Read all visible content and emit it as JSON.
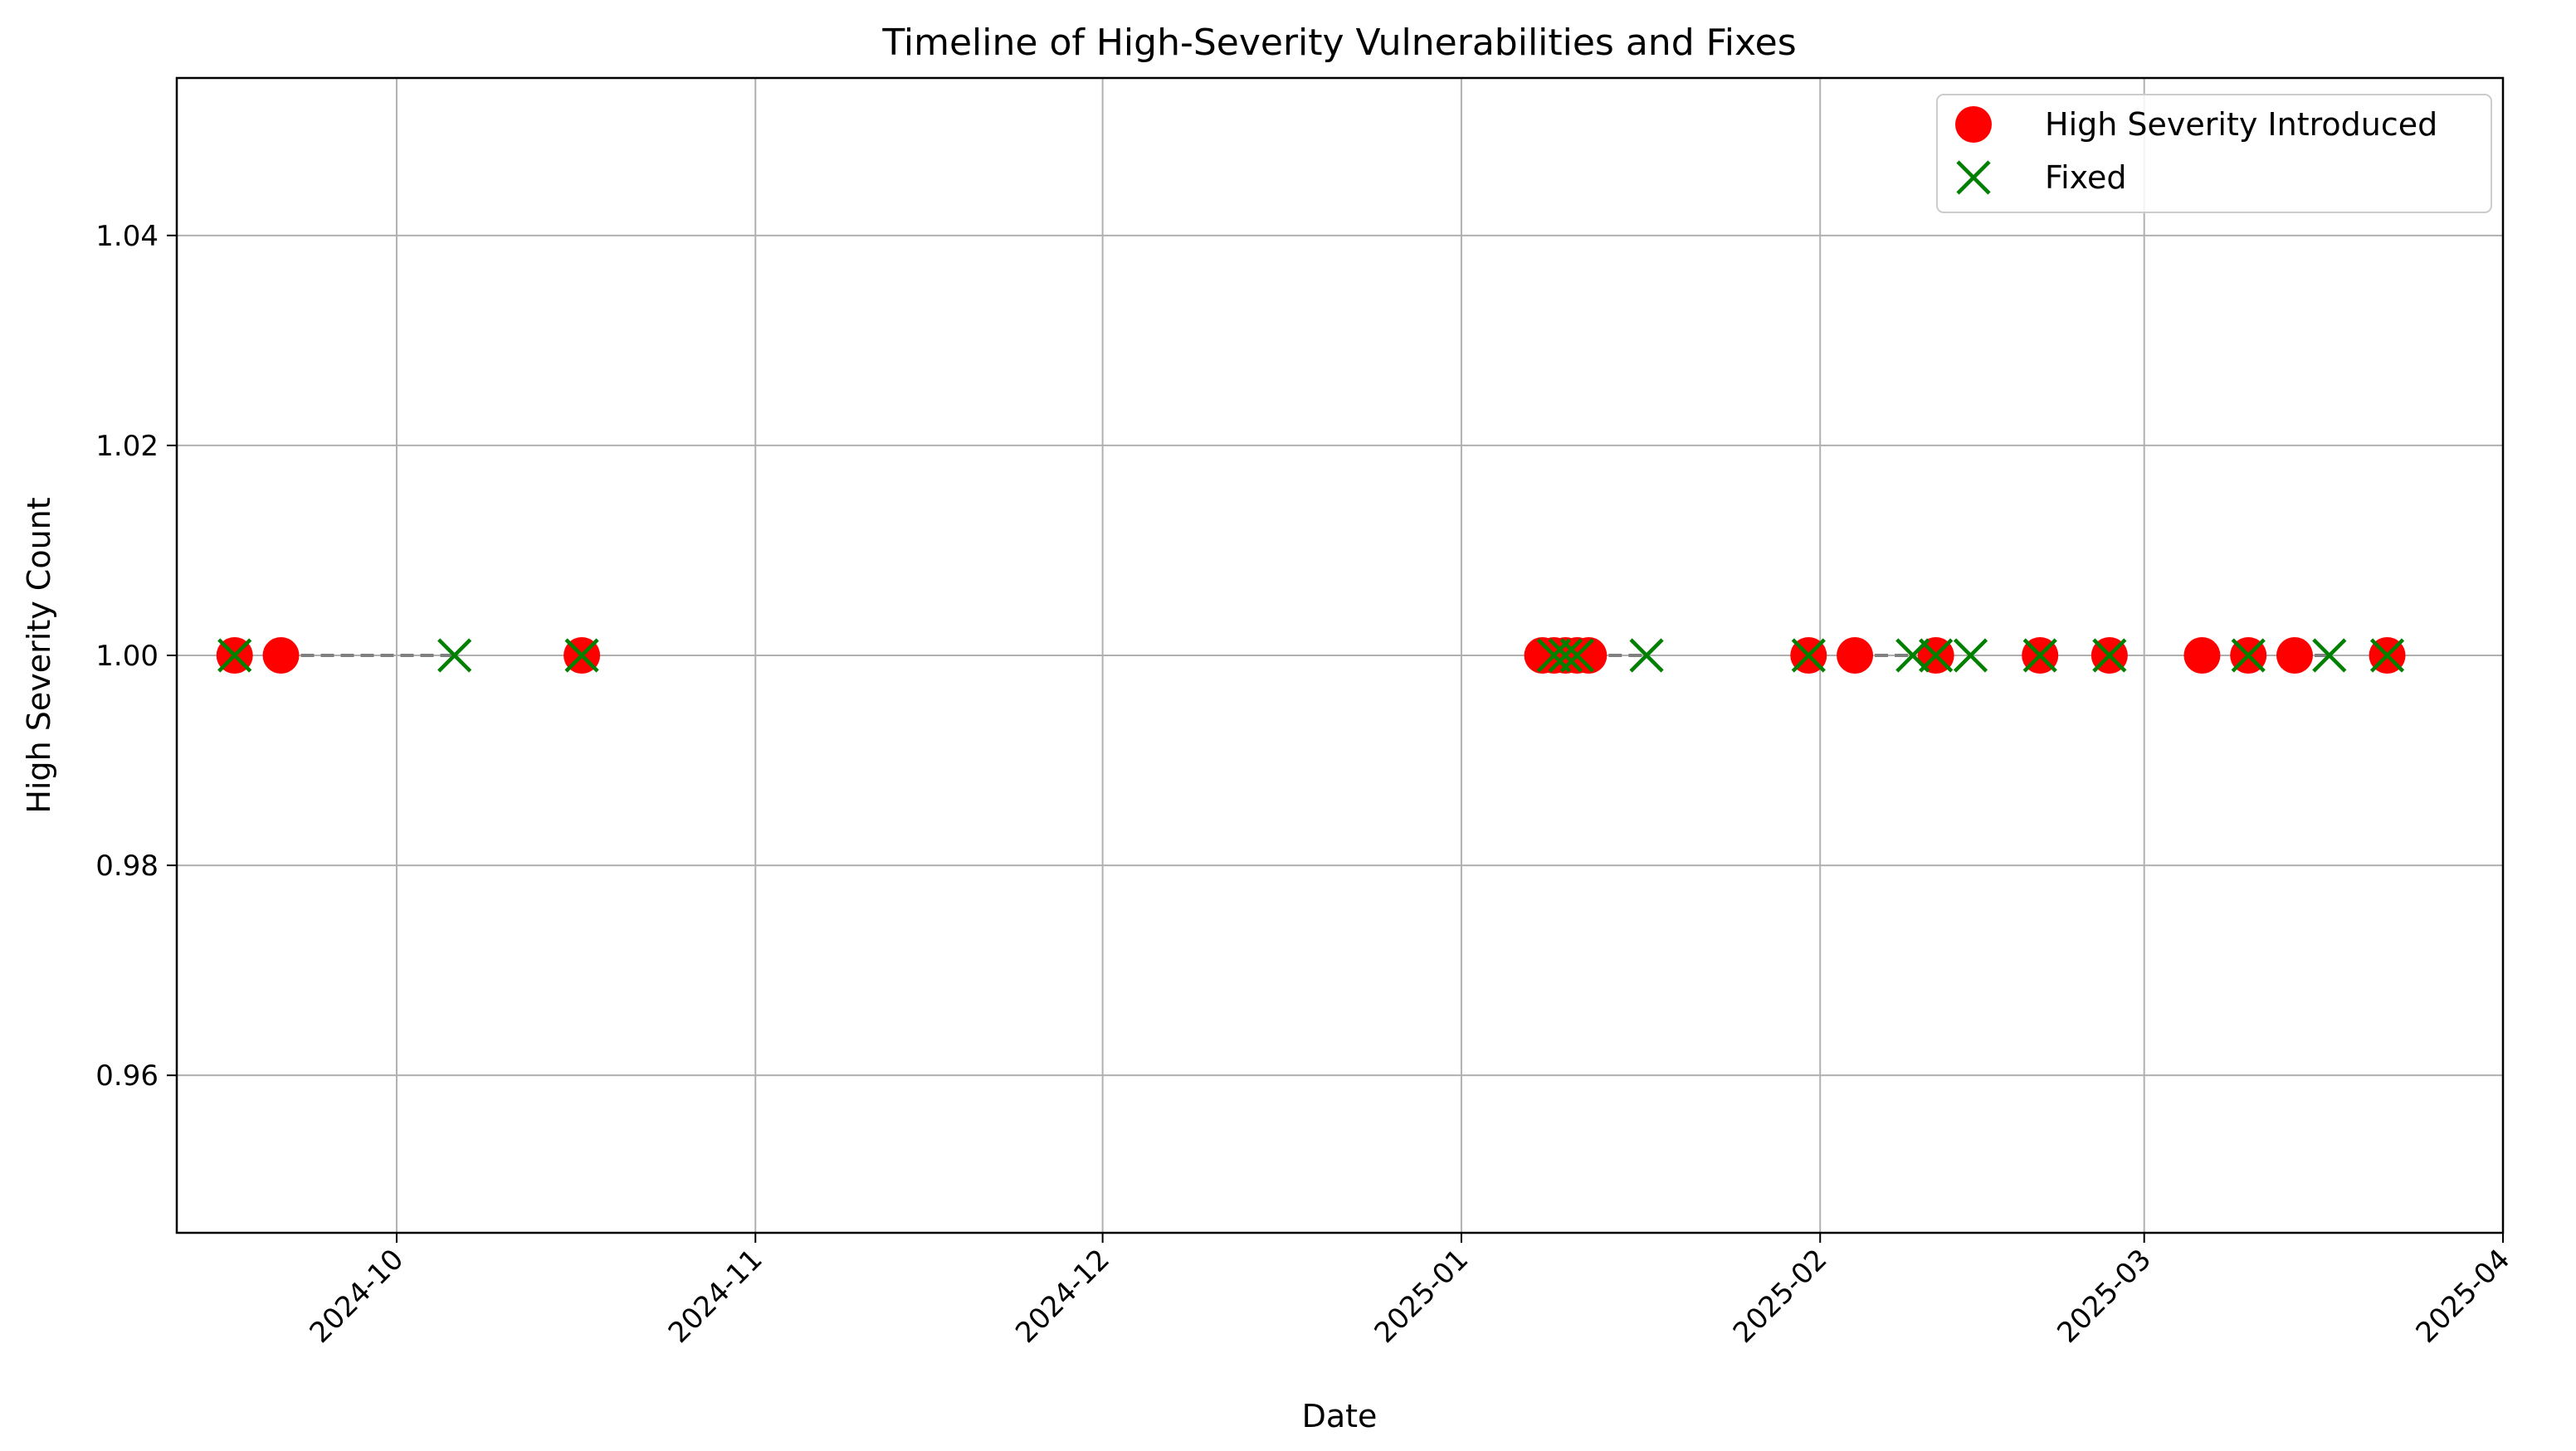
{
  "chart_data": {
    "type": "scatter",
    "title": "Timeline of High-Severity Vulnerabilities and Fixes",
    "xlabel": "Date",
    "ylabel": "High Severity Count",
    "x_axis_type": "date",
    "xlim": [
      "2024-09-12",
      "2025-04-01"
    ],
    "ylim": [
      0.945,
      1.055
    ],
    "x_ticks": [
      "2024-10-01",
      "2024-11-01",
      "2024-12-01",
      "2025-01-01",
      "2025-02-01",
      "2025-03-01",
      "2025-04-01"
    ],
    "x_tick_labels": [
      "2024-10",
      "2024-11",
      "2024-12",
      "2025-01",
      "2025-02",
      "2025-03",
      "2025-04"
    ],
    "y_ticks": [
      0.96,
      0.98,
      1.0,
      1.02,
      1.04
    ],
    "y_tick_labels": [
      "0.96",
      "0.98",
      "1.00",
      "1.02",
      "1.04"
    ],
    "grid": true,
    "legend_position": "top-right",
    "series": [
      {
        "name": "High Severity Introduced",
        "marker": "circle",
        "color": "#ff0000",
        "x": [
          "2024-09-17",
          "2024-09-21",
          "2024-10-17",
          "2025-01-08",
          "2025-01-09",
          "2025-01-10",
          "2025-01-11",
          "2025-01-12",
          "2025-01-31",
          "2025-02-04",
          "2025-02-11",
          "2025-02-20",
          "2025-02-26",
          "2025-03-06",
          "2025-03-10",
          "2025-03-14",
          "2025-03-22"
        ],
        "y": [
          1,
          1,
          1,
          1,
          1,
          1,
          1,
          1,
          1,
          1,
          1,
          1,
          1,
          1,
          1,
          1,
          1
        ]
      },
      {
        "name": "Fixed",
        "marker": "x",
        "color": "#008000",
        "x": [
          "2024-09-17",
          "2024-10-06",
          "2024-10-17",
          "2025-01-09",
          "2025-01-10",
          "2025-01-11",
          "2025-01-17",
          "2025-01-31",
          "2025-02-09",
          "2025-02-11",
          "2025-02-14",
          "2025-02-20",
          "2025-02-26",
          "2025-03-10",
          "2025-03-17",
          "2025-03-22"
        ],
        "y": [
          1,
          1,
          1,
          1,
          1,
          1,
          1,
          1,
          1,
          1,
          1,
          1,
          1,
          1,
          1,
          1
        ]
      }
    ],
    "connector_lines": {
      "style": "dashed",
      "color": "#808080",
      "pairs": [
        [
          "2024-09-21",
          "2024-10-06"
        ],
        [
          "2025-01-12",
          "2025-01-17"
        ],
        [
          "2025-02-04",
          "2025-02-09"
        ],
        [
          "2025-03-14",
          "2025-03-17"
        ]
      ]
    }
  }
}
